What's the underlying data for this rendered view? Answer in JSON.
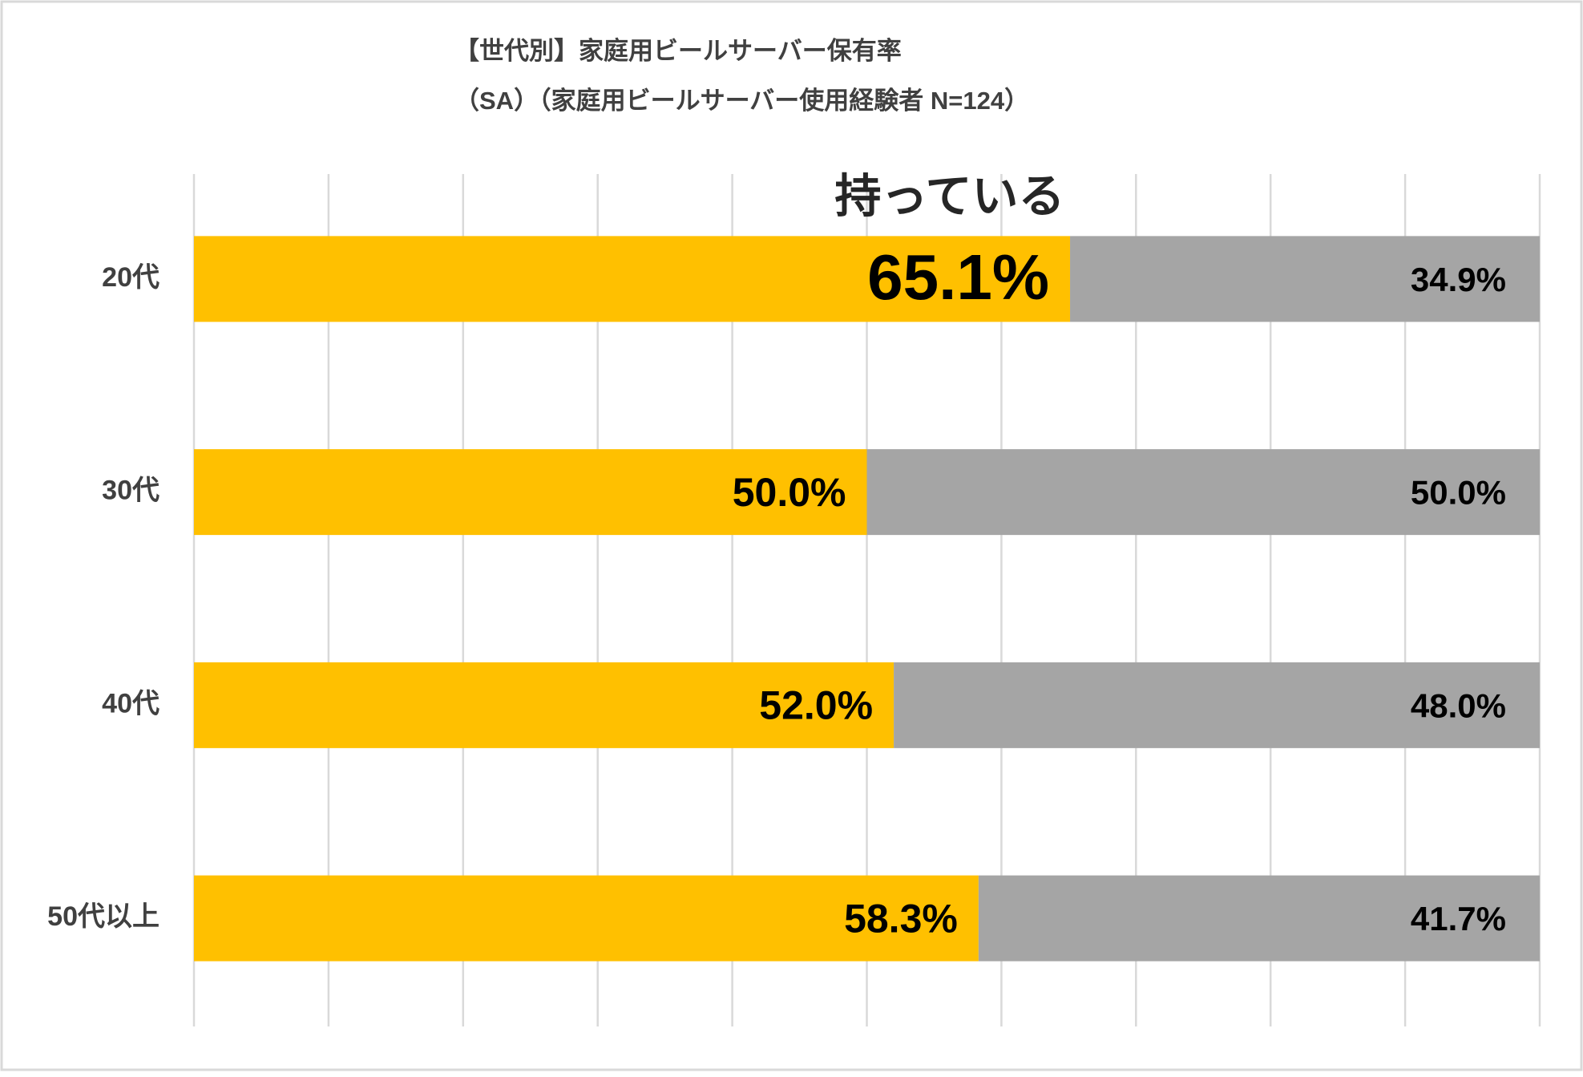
{
  "chart_data": {
    "type": "bar",
    "horizontal": true,
    "stacked": true,
    "title": "【世代別】家庭用ビールサーバー保有率",
    "subtitle": "（SA）（家庭用ビールサーバー使用経験者 N=124）",
    "categories": [
      "20代",
      "30代",
      "40代",
      "50代以上"
    ],
    "series": [
      {
        "name": "持っている",
        "color": "#FFC000",
        "values": [
          65.1,
          50.0,
          52.0,
          58.3
        ],
        "value_labels": [
          "65.1%",
          "50.0%",
          "52.0%",
          "58.3%"
        ]
      },
      {
        "color": "#A5A5A5",
        "values": [
          34.9,
          50.0,
          48.0,
          41.7
        ],
        "value_labels": [
          "34.9%",
          "50.0%",
          "48.0%",
          "41.7%"
        ]
      }
    ],
    "xlim": [
      0,
      100
    ],
    "xticks": [
      0,
      10,
      20,
      30,
      40,
      50,
      60,
      70,
      80,
      90,
      100
    ],
    "grid": true
  }
}
